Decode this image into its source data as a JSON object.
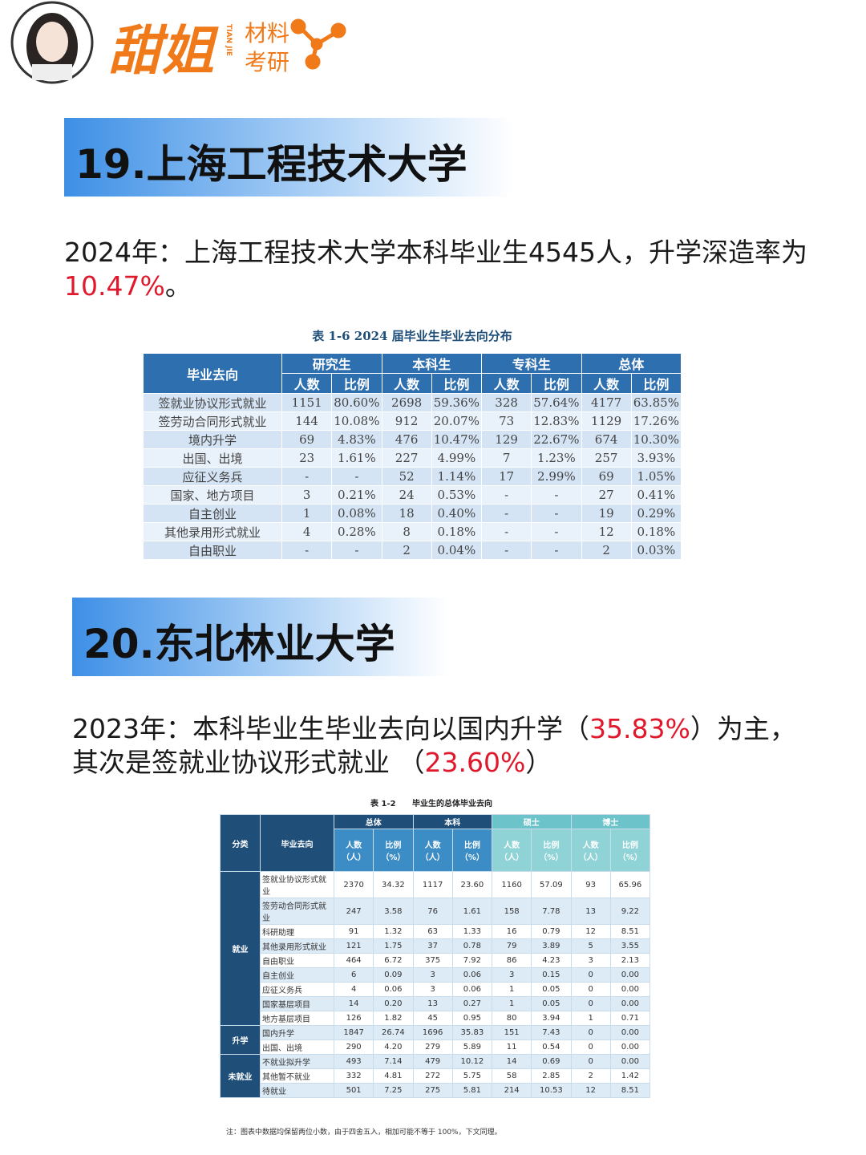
{
  "header": {
    "brand": "甜姐",
    "brand_pinyin": "TIAN JIE",
    "tag_top": "材料",
    "tag_bottom": "考研"
  },
  "section1": {
    "title": "19.上海工程技术大学",
    "text_before": "2024年：上海工程技术大学本科毕业生4545人，升学深造率为",
    "highlight": "10.47%",
    "text_after": "。"
  },
  "table1": {
    "caption": "表 1-6  2024 届毕业生毕业去向分布",
    "row_header": "毕业去向",
    "groups": [
      "研究生",
      "本科生",
      "专科生",
      "总体"
    ],
    "subheaders": [
      "人数",
      "比例"
    ],
    "rows": [
      [
        "签就业协议形式就业",
        "1151",
        "80.60%",
        "2698",
        "59.36%",
        "328",
        "57.64%",
        "4177",
        "63.85%"
      ],
      [
        "签劳动合同形式就业",
        "144",
        "10.08%",
        "912",
        "20.07%",
        "73",
        "12.83%",
        "1129",
        "17.26%"
      ],
      [
        "境内升学",
        "69",
        "4.83%",
        "476",
        "10.47%",
        "129",
        "22.67%",
        "674",
        "10.30%"
      ],
      [
        "出国、出境",
        "23",
        "1.61%",
        "227",
        "4.99%",
        "7",
        "1.23%",
        "257",
        "3.93%"
      ],
      [
        "应征义务兵",
        "-",
        "-",
        "52",
        "1.14%",
        "17",
        "2.99%",
        "69",
        "1.05%"
      ],
      [
        "国家、地方项目",
        "3",
        "0.21%",
        "24",
        "0.53%",
        "-",
        "-",
        "27",
        "0.41%"
      ],
      [
        "自主创业",
        "1",
        "0.08%",
        "18",
        "0.40%",
        "-",
        "-",
        "19",
        "0.29%"
      ],
      [
        "其他录用形式就业",
        "4",
        "0.28%",
        "8",
        "0.18%",
        "-",
        "-",
        "12",
        "0.18%"
      ],
      [
        "自由职业",
        "-",
        "-",
        "2",
        "0.04%",
        "-",
        "-",
        "2",
        "0.03%"
      ]
    ]
  },
  "section2": {
    "title": "20.东北林业大学",
    "text_before": "2023年：本科毕业生毕业去向以国内升学（",
    "highlight1": "35.83%",
    "text_middle": "）为主，其次是签就业协议形式就业 （",
    "highlight2": "23.60%",
    "text_after": "）"
  },
  "table2": {
    "caption_no": "表 1-2",
    "caption": "毕业生的总体毕业去向",
    "category_header": "分类",
    "row_header": "毕业去向",
    "groups": [
      "总体",
      "本科",
      "硕士",
      "博士"
    ],
    "subheaders": [
      "人数（人）",
      "比例（%）"
    ],
    "categories": [
      {
        "label": "就业",
        "rows": [
          [
            "签就业协议形式就业",
            "2370",
            "34.32",
            "1117",
            "23.60",
            "1160",
            "57.09",
            "93",
            "65.96"
          ],
          [
            "签劳动合同形式就业",
            "247",
            "3.58",
            "76",
            "1.61",
            "158",
            "7.78",
            "13",
            "9.22"
          ],
          [
            "科研助理",
            "91",
            "1.32",
            "63",
            "1.33",
            "16",
            "0.79",
            "12",
            "8.51"
          ],
          [
            "其他录用形式就业",
            "121",
            "1.75",
            "37",
            "0.78",
            "79",
            "3.89",
            "5",
            "3.55"
          ],
          [
            "自由职业",
            "464",
            "6.72",
            "375",
            "7.92",
            "86",
            "4.23",
            "3",
            "2.13"
          ],
          [
            "自主创业",
            "6",
            "0.09",
            "3",
            "0.06",
            "3",
            "0.15",
            "0",
            "0.00"
          ],
          [
            "应征义务兵",
            "4",
            "0.06",
            "3",
            "0.06",
            "1",
            "0.05",
            "0",
            "0.00"
          ],
          [
            "国家基层项目",
            "14",
            "0.20",
            "13",
            "0.27",
            "1",
            "0.05",
            "0",
            "0.00"
          ],
          [
            "地方基层项目",
            "126",
            "1.82",
            "45",
            "0.95",
            "80",
            "3.94",
            "1",
            "0.71"
          ]
        ]
      },
      {
        "label": "升学",
        "rows": [
          [
            "国内升学",
            "1847",
            "26.74",
            "1696",
            "35.83",
            "151",
            "7.43",
            "0",
            "0.00"
          ],
          [
            "出国、出境",
            "290",
            "4.20",
            "279",
            "5.89",
            "11",
            "0.54",
            "0",
            "0.00"
          ]
        ]
      },
      {
        "label": "未就业",
        "rows": [
          [
            "不就业拟升学",
            "493",
            "7.14",
            "479",
            "10.12",
            "14",
            "0.69",
            "0",
            "0.00"
          ],
          [
            "其他暂不就业",
            "332",
            "4.81",
            "272",
            "5.75",
            "58",
            "2.85",
            "2",
            "1.42"
          ],
          [
            "待就业",
            "501",
            "7.25",
            "275",
            "5.81",
            "214",
            "10.53",
            "12",
            "8.51"
          ]
        ]
      }
    ],
    "note": "注：图表中数据均保留两位小数，由于四舍五入，相加可能不等于 100%，下文同理。"
  }
}
